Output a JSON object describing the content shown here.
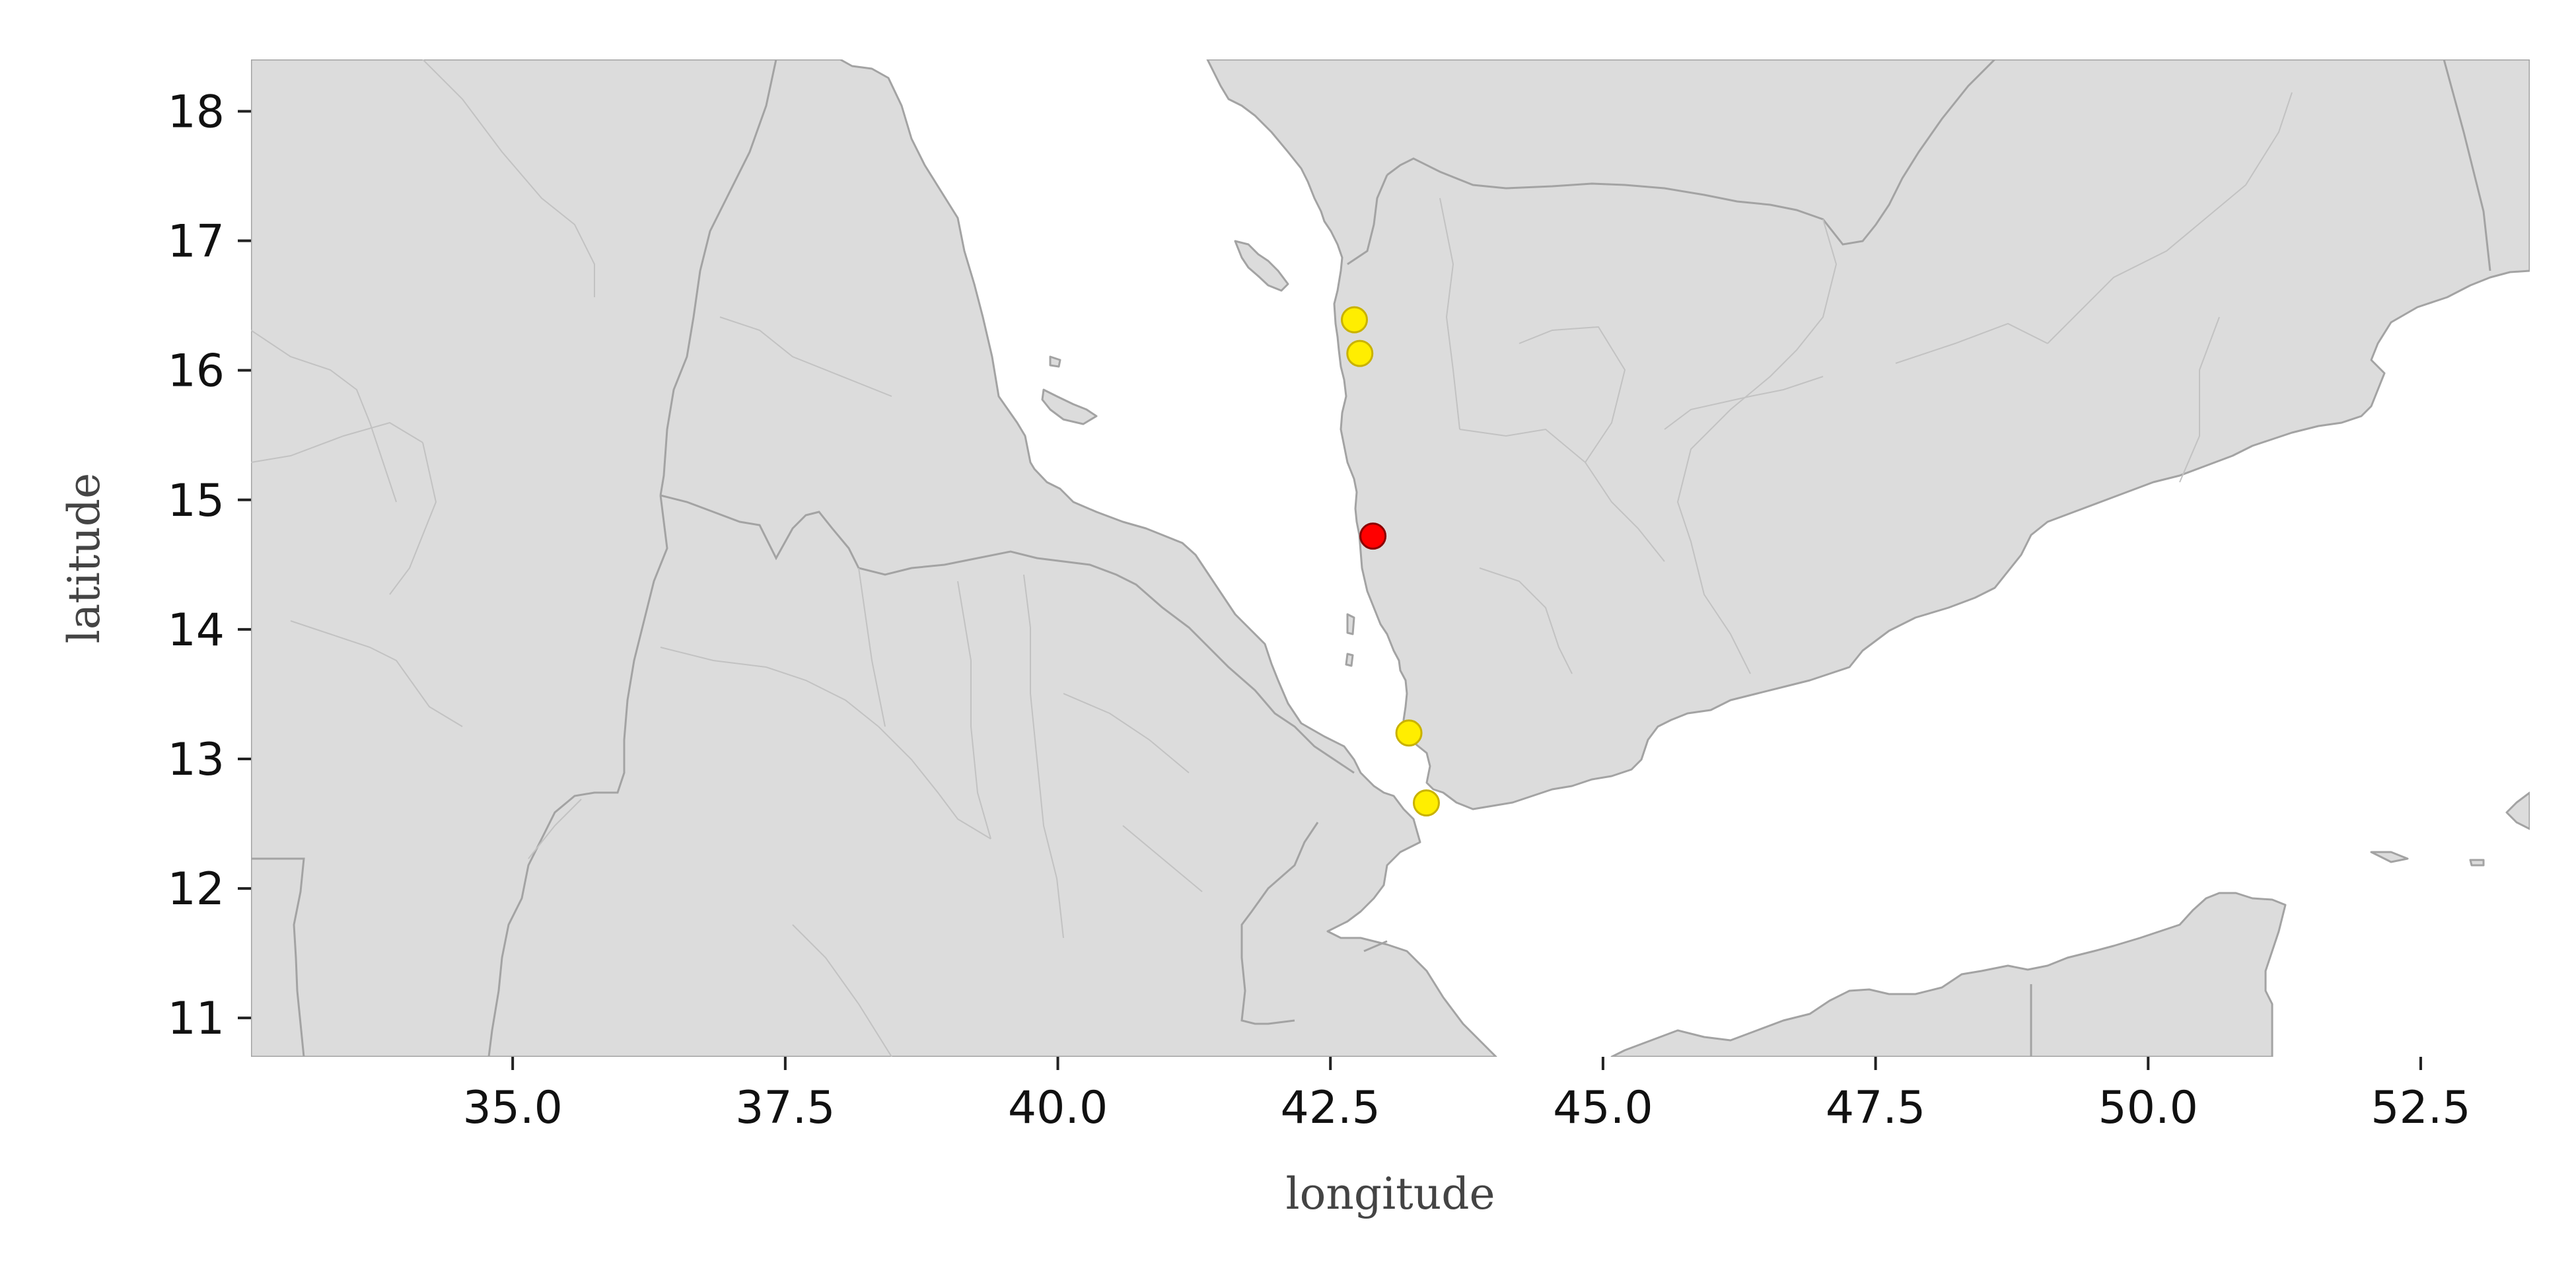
{
  "chart_data": {
    "type": "scatter",
    "projection": "map",
    "xlabel": "longitude",
    "ylabel": "latitude",
    "xlim": [
      32.6,
      53.5
    ],
    "ylim": [
      10.7,
      18.4
    ],
    "xticks": [
      35.0,
      37.5,
      40.0,
      42.5,
      45.0,
      47.5,
      50.0,
      52.5
    ],
    "xtick_labels": [
      "35.0",
      "37.5",
      "40.0",
      "42.5",
      "45.0",
      "47.5",
      "50.0",
      "52.5"
    ],
    "yticks": [
      11,
      12,
      13,
      14,
      15,
      16,
      17,
      18
    ],
    "ytick_labels": [
      "11",
      "12",
      "13",
      "14",
      "15",
      "16",
      "17",
      "18"
    ],
    "grid": false,
    "land_color": "#dcdcdc",
    "border_color": "#a3a3a3",
    "points": [
      {
        "lon": 42.72,
        "lat": 16.39,
        "color": "#ffee00"
      },
      {
        "lon": 42.77,
        "lat": 16.13,
        "color": "#ffee00"
      },
      {
        "lon": 42.89,
        "lat": 14.72,
        "color": "#ff0000"
      },
      {
        "lon": 43.22,
        "lat": 13.2,
        "color": "#ffee00"
      },
      {
        "lon": 43.38,
        "lat": 12.66,
        "color": "#ffee00"
      }
    ]
  }
}
